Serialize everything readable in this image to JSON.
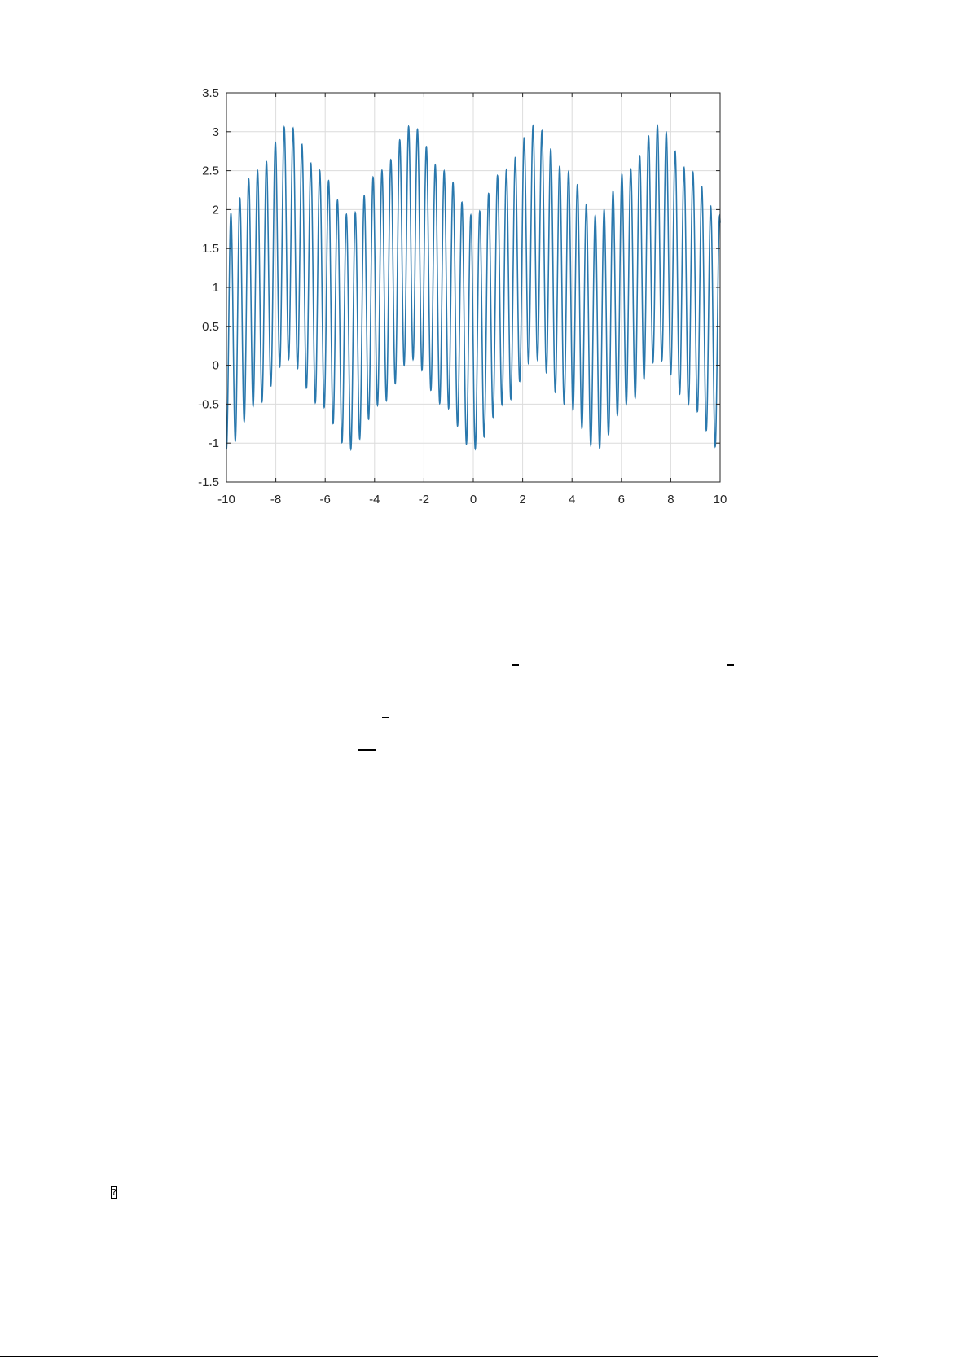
{
  "chart_data": {
    "type": "line",
    "title": "",
    "xlabel": "",
    "ylabel": "",
    "xlim": [
      -10,
      10
    ],
    "ylim": [
      -1.5,
      3.5
    ],
    "xticks": [
      "-10",
      "-8",
      "-6",
      "-4",
      "-2",
      "0",
      "2",
      "4",
      "6",
      "8",
      "10"
    ],
    "yticks": [
      "-1.5",
      "-1",
      "-0.5",
      "0",
      "0.5",
      "1",
      "1.5",
      "2",
      "2.5",
      "3",
      "3.5"
    ],
    "grid": true,
    "legend": "none",
    "line_color": "#2a78ad",
    "series": [
      {
        "oscillation_period": 0.36,
        "envelope_x": [
          -10,
          -8.75,
          -7.5,
          -6.25,
          -5,
          -3.75,
          -2.5,
          -1.25,
          0,
          1.25,
          2.5,
          3.75,
          5,
          6.25,
          7.5,
          8.75,
          10
        ],
        "upper": [
          1.92,
          2.5,
          3.08,
          2.5,
          1.92,
          2.5,
          3.08,
          2.5,
          1.92,
          2.5,
          3.08,
          2.5,
          1.92,
          2.5,
          3.08,
          2.5,
          1.92
        ],
        "lower": [
          -1.08,
          -0.5,
          0.08,
          -0.5,
          -1.08,
          -0.5,
          0.08,
          -0.5,
          -1.08,
          -0.5,
          0.08,
          -0.5,
          -1.08,
          -0.5,
          0.08,
          -0.5,
          -1.08
        ]
      }
    ]
  },
  "document": {
    "missing_glyph": "?"
  }
}
